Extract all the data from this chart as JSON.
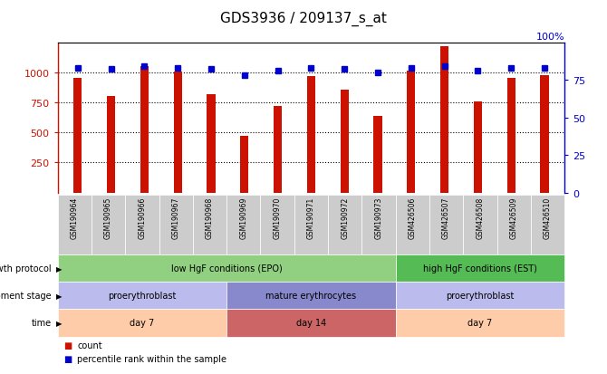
{
  "title": "GDS3936 / 209137_s_at",
  "samples": [
    "GSM190964",
    "GSM190965",
    "GSM190966",
    "GSM190967",
    "GSM190968",
    "GSM190969",
    "GSM190970",
    "GSM190971",
    "GSM190972",
    "GSM190973",
    "GSM426506",
    "GSM426507",
    "GSM426508",
    "GSM426509",
    "GSM426510"
  ],
  "counts": [
    950,
    800,
    1055,
    1005,
    820,
    475,
    720,
    970,
    855,
    640,
    1010,
    1215,
    760,
    950,
    975
  ],
  "percentiles": [
    83,
    82,
    84,
    83,
    82,
    78,
    81,
    83,
    82,
    80,
    83,
    84,
    81,
    83,
    83
  ],
  "bar_color": "#CC1100",
  "dot_color": "#0000CC",
  "ylim_left": [
    0,
    1250
  ],
  "ylim_right": [
    0,
    100
  ],
  "yticks_left": [
    250,
    500,
    750,
    1000
  ],
  "ytick_labels_left": [
    "250",
    "500",
    "750",
    "1000"
  ],
  "yticks_right": [
    0,
    25,
    50,
    75
  ],
  "ytick_labels_right": [
    "0",
    "25",
    "50",
    "75"
  ],
  "annotations": {
    "growth_protocol": {
      "label": "growth protocol",
      "groups": [
        {
          "text": "low HgF conditions (EPO)",
          "start": 0,
          "end": 10,
          "color": "#90D080"
        },
        {
          "text": "high HgF conditions (EST)",
          "start": 10,
          "end": 15,
          "color": "#55BB55"
        }
      ]
    },
    "development_stage": {
      "label": "development stage",
      "groups": [
        {
          "text": "proerythroblast",
          "start": 0,
          "end": 5,
          "color": "#BBBBEE"
        },
        {
          "text": "mature erythrocytes",
          "start": 5,
          "end": 10,
          "color": "#8888CC"
        },
        {
          "text": "proerythroblast",
          "start": 10,
          "end": 15,
          "color": "#BBBBEE"
        }
      ]
    },
    "time": {
      "label": "time",
      "groups": [
        {
          "text": "day 7",
          "start": 0,
          "end": 5,
          "color": "#FFCCAA"
        },
        {
          "text": "day 14",
          "start": 5,
          "end": 10,
          "color": "#CC6666"
        },
        {
          "text": "day 7",
          "start": 10,
          "end": 15,
          "color": "#FFCCAA"
        }
      ]
    }
  },
  "legend": [
    {
      "color": "#CC1100",
      "label": "count"
    },
    {
      "color": "#0000CC",
      "label": "percentile rank within the sample"
    }
  ],
  "background_color": "#FFFFFF",
  "tick_bg_color": "#CCCCCC",
  "bar_width": 0.25
}
